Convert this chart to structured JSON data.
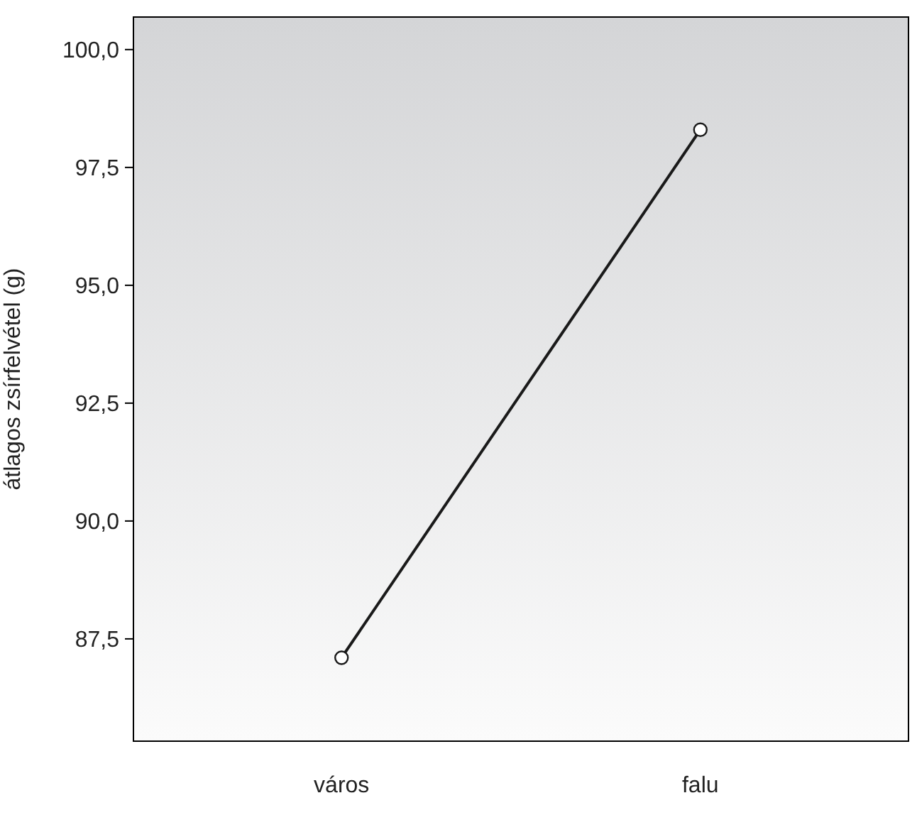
{
  "chart_data": {
    "type": "line",
    "ylabel": "átlagos zsírfelvétel (g)",
    "categories": [
      "város",
      "falu"
    ],
    "series": [
      {
        "color": "#1a1a1a",
        "values": [
          87.1,
          98.3
        ]
      }
    ],
    "ylim": [
      85.33,
      100.69
    ],
    "yticks": [
      {
        "value": 87.5,
        "label": "87,5"
      },
      {
        "value": 90,
        "label": "90,0"
      },
      {
        "value": 92.5,
        "label": "92,5"
      },
      {
        "value": 95,
        "label": "95,0"
      },
      {
        "value": 97.5,
        "label": "97,5"
      },
      {
        "value": 100,
        "label": "100,0"
      }
    ],
    "marker": "circle",
    "line_style": "solid"
  }
}
